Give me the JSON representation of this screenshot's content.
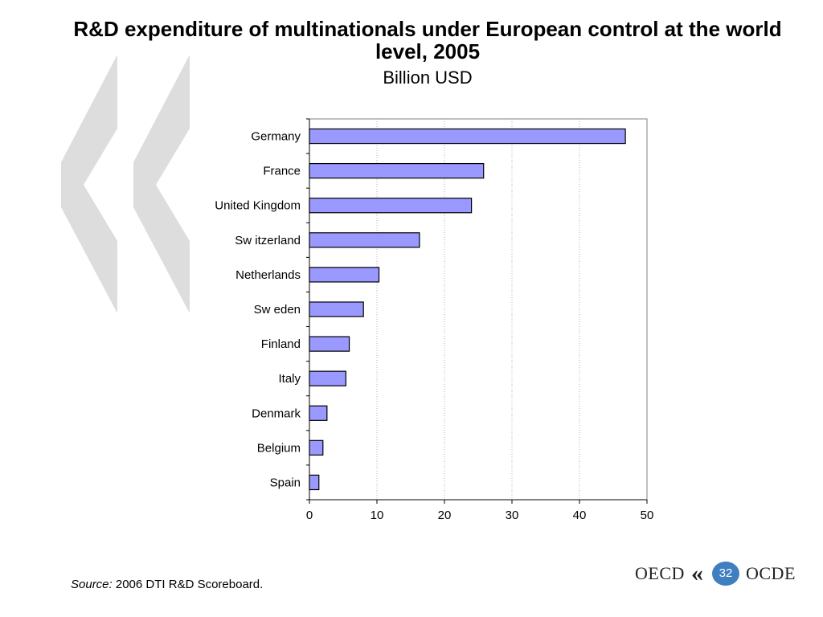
{
  "slide": {
    "source_label": "Source:",
    "source_text": "2006 DTI R&D Scoreboard.",
    "logo_left": "OECD",
    "logo_right": "OCDE",
    "page_number": "32"
  },
  "chart_data": {
    "type": "bar",
    "orientation": "horizontal",
    "title": "R&D expenditure of multinationals under European control at the world level, 2005",
    "subtitle": "Billion USD",
    "categories": [
      "Germany",
      "France",
      "United Kingdom",
      "Sw itzerland",
      "Netherlands",
      "Sw eden",
      "Finland",
      "Italy",
      "Denmark",
      "Belgium",
      "Spain"
    ],
    "values": [
      46.8,
      25.8,
      24.0,
      16.3,
      10.3,
      8.0,
      5.9,
      5.4,
      2.6,
      2.0,
      1.4
    ],
    "xlim": [
      0,
      50
    ],
    "xticks": [
      0,
      10,
      20,
      30,
      40,
      50
    ],
    "grid": "vertical dotted",
    "legend": "none",
    "bar_color": "#9999ff",
    "bar_edge_color": "#000000",
    "deco_color": "#dddddd",
    "logo_circle_color": "#3f7fc0"
  }
}
